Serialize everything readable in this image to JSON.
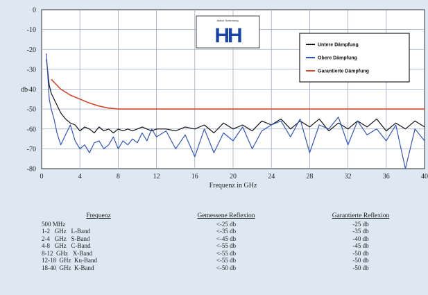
{
  "chart_data": {
    "type": "line",
    "xlabel": "Frequenz in GHz",
    "ylabel": "db",
    "xlim": [
      0,
      40
    ],
    "ylim": [
      -80,
      0
    ],
    "xticks": [
      0,
      4,
      8,
      12,
      16,
      20,
      24,
      28,
      32,
      36,
      40
    ],
    "yticks": [
      0,
      -10,
      -20,
      -30,
      -40,
      -50,
      -60,
      -70,
      -80
    ],
    "grid": true,
    "legend_position": "top-right",
    "series": [
      {
        "name": "Untere Dämpfung",
        "color": "#111111",
        "x": [
          0.5,
          0.8,
          1.0,
          1.3,
          1.6,
          2.0,
          2.5,
          3.0,
          3.5,
          4.0,
          4.5,
          5.0,
          5.5,
          6.0,
          6.5,
          7.0,
          7.5,
          8.0,
          8.5,
          9.0,
          9.5,
          10.0,
          10.5,
          11.0,
          11.5,
          12.0,
          13,
          14,
          15,
          16,
          17,
          18,
          19,
          20,
          21,
          22,
          23,
          24,
          25,
          26,
          27,
          28,
          29,
          30,
          31,
          32,
          33,
          34,
          35,
          36,
          37,
          38,
          39,
          40
        ],
        "values": [
          -25,
          -38,
          -42,
          -45,
          -48,
          -52,
          -55,
          -57,
          -58,
          -61,
          -59,
          -60,
          -62,
          -59,
          -61,
          -60,
          -62,
          -60,
          -61,
          -60,
          -61,
          -60,
          -59,
          -60,
          -61,
          -60,
          -60,
          -61,
          -59,
          -60,
          -58,
          -62,
          -57,
          -60,
          -58,
          -61,
          -56,
          -58,
          -55,
          -60,
          -56,
          -59,
          -55,
          -61,
          -57,
          -60,
          -56,
          -59,
          -55,
          -61,
          -57,
          -60,
          -56,
          -59
        ]
      },
      {
        "name": "Obere Dämpfung",
        "color": "#2f54c0",
        "x": [
          0.5,
          0.8,
          1.0,
          1.3,
          1.6,
          2.0,
          2.5,
          3.0,
          3.5,
          4.0,
          4.5,
          5.0,
          5.5,
          6.0,
          6.5,
          7.0,
          7.5,
          8.0,
          8.5,
          9.0,
          9.5,
          10.0,
          10.5,
          11.0,
          11.5,
          12.0,
          13,
          14,
          15,
          16,
          17,
          18,
          19,
          20,
          21,
          22,
          23,
          24,
          25,
          26,
          27,
          28,
          29,
          30,
          31,
          32,
          33,
          34,
          35,
          36,
          37,
          38,
          39,
          40
        ],
        "values": [
          -22,
          -45,
          -50,
          -55,
          -62,
          -68,
          -63,
          -58,
          -66,
          -70,
          -68,
          -72,
          -67,
          -66,
          -70,
          -68,
          -64,
          -70,
          -66,
          -68,
          -65,
          -67,
          -62,
          -66,
          -60,
          -64,
          -61,
          -70,
          -63,
          -74,
          -60,
          -72,
          -62,
          -66,
          -59,
          -70,
          -61,
          -58,
          -56,
          -64,
          -55,
          -72,
          -58,
          -60,
          -54,
          -68,
          -56,
          -63,
          -60,
          -66,
          -58,
          -80,
          -60,
          -66
        ]
      },
      {
        "name": "Garantierte Dämpfung",
        "color": "#d4472a",
        "x": [
          1,
          2,
          3,
          4,
          5,
          6,
          7,
          8,
          9,
          10,
          40
        ],
        "values": [
          -35,
          -40,
          -43,
          -45,
          -47,
          -48.5,
          -49.5,
          -50,
          -50,
          -50,
          -50
        ]
      }
    ]
  },
  "logo": {
    "text": "HH",
    "caption": "Aktive Schirmung"
  },
  "table": {
    "headers": [
      "Frequenz",
      "Gemessene Reflexion",
      "Garantierte Reflexion"
    ],
    "rows": [
      {
        "freq": "500 MHz",
        "measured": "<-25 db",
        "guaranteed": "-25 db"
      },
      {
        "freq": "1-2   GHz   L-Band",
        "measured": "<-35 db",
        "guaranteed": "-35 db"
      },
      {
        "freq": "2-4   GHz   S-Band",
        "measured": "<-45 db",
        "guaranteed": "-40 db"
      },
      {
        "freq": "4-8   GHz   C-Band",
        "measured": "<-55 db",
        "guaranteed": "-45 db"
      },
      {
        "freq": "8-12  GHz   X-Band",
        "measured": "<-55 db",
        "guaranteed": "-50 db"
      },
      {
        "freq": "12-18  GHz  Ku-Band",
        "measured": "<-55 db",
        "guaranteed": "-50 db"
      },
      {
        "freq": "18-40  GHz  K-Band",
        "measured": "<-50 db",
        "guaranteed": "-50 db"
      }
    ]
  }
}
